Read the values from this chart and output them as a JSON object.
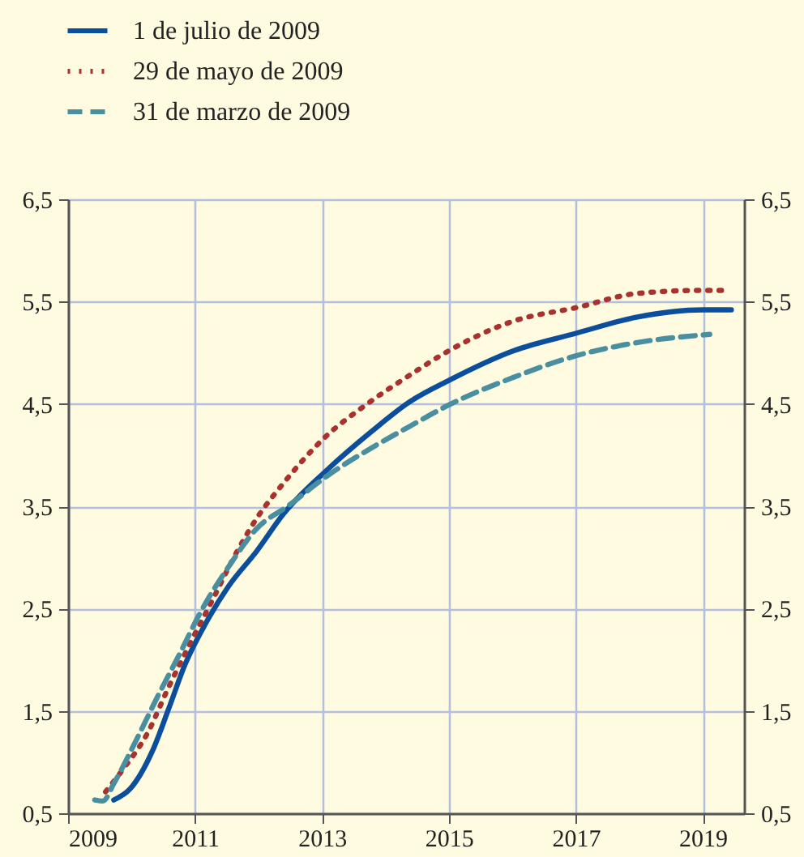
{
  "chart_data": {
    "type": "line",
    "xlim": [
      2009,
      2019.65
    ],
    "xticks": [
      2009,
      2011,
      2013,
      2015,
      2017,
      2019
    ],
    "ylim": [
      0.5,
      6.5
    ],
    "yticks": [
      {
        "value": 0.5,
        "label": "0,5"
      },
      {
        "value": 1.5,
        "label": "1,5"
      },
      {
        "value": 2.5,
        "label": "2,5"
      },
      {
        "value": 3.5,
        "label": "3,5"
      },
      {
        "value": 4.5,
        "label": "4,5"
      },
      {
        "value": 5.5,
        "label": "5,5"
      },
      {
        "value": 6.5,
        "label": "6,5"
      }
    ],
    "y2lim": [
      0.5,
      6.5
    ],
    "y2ticks": [
      {
        "value": 0.5,
        "label": "0,5"
      },
      {
        "value": 1.5,
        "label": "1,5"
      },
      {
        "value": 2.5,
        "label": "2,5"
      },
      {
        "value": 3.5,
        "label": "3,5"
      },
      {
        "value": 4.5,
        "label": "4,5"
      },
      {
        "value": 5.5,
        "label": "5,5"
      },
      {
        "value": 6.5,
        "label": "6,5"
      }
    ],
    "grid": true,
    "legend": "top left",
    "series": [
      {
        "name": "1 de julio de 2009",
        "color": "#0b4f9c",
        "line_style": "solid",
        "x": [
          2009.72,
          2009.98,
          2010.33,
          2010.59,
          2010.84,
          2011.19,
          2011.53,
          2011.97,
          2012.4,
          2013.09,
          2013.78,
          2014.38,
          2015,
          2016.02,
          2017,
          2017.97,
          2019,
          2019.45
        ],
        "values": [
          0.63,
          0.74,
          1.11,
          1.53,
          1.95,
          2.38,
          2.72,
          3.06,
          3.43,
          3.86,
          4.23,
          4.52,
          4.73,
          5.02,
          5.19,
          5.35,
          5.42,
          5.42
        ]
      },
      {
        "name": "29 de mayo de 2009",
        "color": "#a8322d",
        "line_style": "dotted",
        "x": [
          2009.59,
          2009.89,
          2010.24,
          2010.59,
          2010.93,
          2011.28,
          2011.62,
          2011.97,
          2012.4,
          2013.04,
          2013.69,
          2014.38,
          2015,
          2016.02,
          2017,
          2017.97,
          2019,
          2019.36
        ],
        "values": [
          0.71,
          0.95,
          1.27,
          1.74,
          2.17,
          2.59,
          3.01,
          3.38,
          3.73,
          4.17,
          4.49,
          4.78,
          5.02,
          5.31,
          5.44,
          5.58,
          5.61,
          5.61
        ]
      },
      {
        "name": "31 de marzo de 2009",
        "color": "#4a8fa0",
        "line_style": "dashed",
        "x": [
          2009.42,
          2009.55,
          2009.72,
          2010.07,
          2010.41,
          2010.76,
          2011.1,
          2011.53,
          2011.97,
          2012.48,
          2013.09,
          2013.78,
          2014.38,
          2015,
          2016.02,
          2017,
          2017.97,
          2019.11
        ],
        "values": [
          0.63,
          0.62,
          0.79,
          1.21,
          1.64,
          2.06,
          2.48,
          2.91,
          3.28,
          3.51,
          3.8,
          4.07,
          4.28,
          4.49,
          4.76,
          4.97,
          5.1,
          5.18
        ]
      }
    ]
  }
}
